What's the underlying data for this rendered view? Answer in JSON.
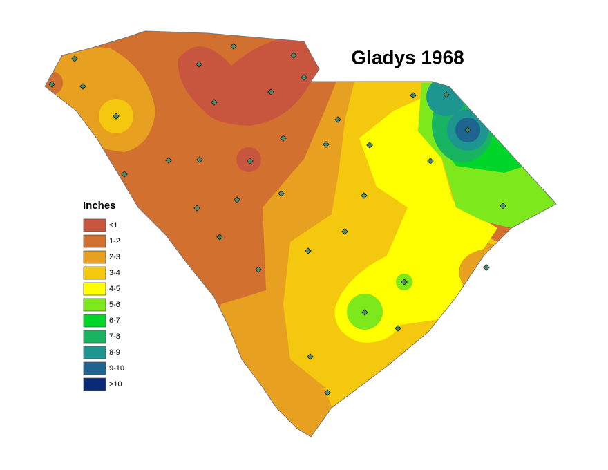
{
  "title": "Gladys 1968",
  "legend": {
    "title": "Inches",
    "items": [
      {
        "label": "<1",
        "color": "#c8553d"
      },
      {
        "label": "1-2",
        "color": "#d2702f"
      },
      {
        "label": "2-3",
        "color": "#e8a020"
      },
      {
        "label": "3-4",
        "color": "#f4c80f"
      },
      {
        "label": "4-5",
        "color": "#ffff00"
      },
      {
        "label": "5-6",
        "color": "#7de81c"
      },
      {
        "label": "6-7",
        "color": "#00d62a"
      },
      {
        "label": "7-8",
        "color": "#18b462"
      },
      {
        "label": "8-9",
        "color": "#1e9690"
      },
      {
        "label": "9-10",
        "color": "#1e6490"
      },
      {
        "label": ">10",
        "color": "#0a2a78"
      }
    ]
  }
}
